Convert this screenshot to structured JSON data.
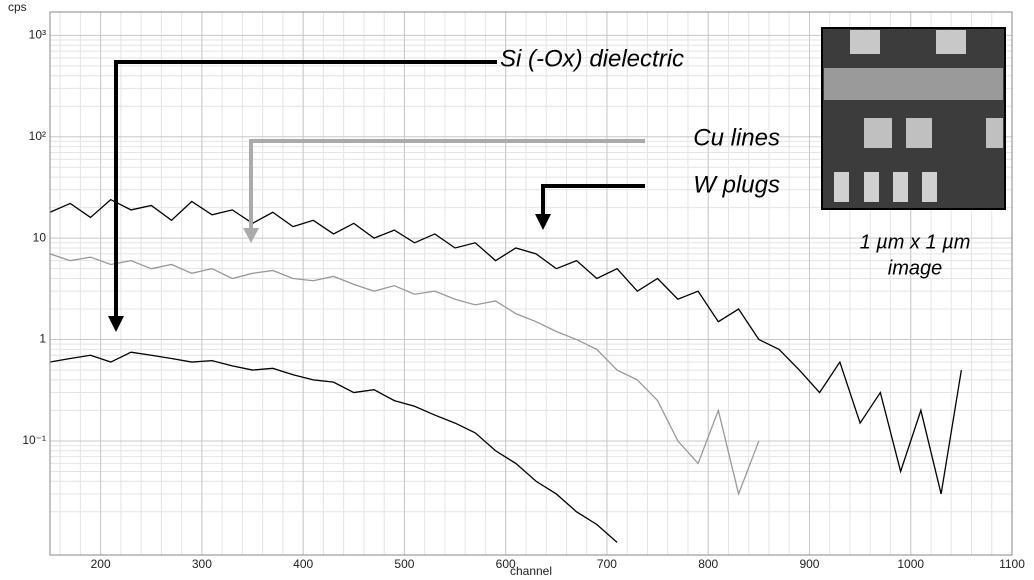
{
  "chart_data": {
    "type": "line",
    "y_label": "cps",
    "x_label": "channel",
    "xlim": [
      150,
      1100
    ],
    "xticks": [
      200,
      300,
      400,
      500,
      600,
      700,
      800,
      900,
      1000,
      1100
    ],
    "ylim": [
      0.0075,
      1700
    ],
    "log_y": true,
    "grid": true,
    "yticks": [
      {
        "value": 0.1,
        "label": "10⁻¹"
      },
      1,
      10,
      {
        "value": 100,
        "label": "10²"
      },
      {
        "value": 1000,
        "label": "10³"
      }
    ],
    "x": [
      150,
      170,
      190,
      210,
      230,
      250,
      270,
      290,
      310,
      330,
      350,
      370,
      390,
      410,
      430,
      450,
      470,
      490,
      510,
      530,
      550,
      570,
      590,
      610,
      630,
      650,
      670,
      690,
      710,
      730,
      750,
      770,
      790,
      810,
      830,
      850,
      870,
      890,
      910,
      930,
      950,
      970,
      990,
      1010,
      1030,
      1050
    ],
    "series": [
      {
        "name": "W plugs",
        "color": "#000000",
        "values": [
          18,
          22,
          16,
          24,
          19,
          21,
          15,
          23,
          17,
          19,
          14,
          18,
          13,
          15,
          11,
          14,
          10,
          12,
          9,
          11,
          8,
          9,
          6,
          8,
          7,
          5,
          6,
          4,
          5,
          3,
          4,
          2.5,
          3,
          1.5,
          2,
          1,
          0.8,
          0.5,
          0.3,
          0.6,
          0.15,
          0.3,
          0.05,
          0.2,
          0.03,
          0.5
        ]
      },
      {
        "name": "Cu lines",
        "color": "#999999",
        "values": [
          7,
          6,
          6.5,
          5.5,
          6,
          5,
          5.5,
          4.5,
          5,
          4,
          4.5,
          4.8,
          4,
          3.8,
          4.2,
          3.5,
          3,
          3.4,
          2.8,
          3,
          2.5,
          2.2,
          2.4,
          1.8,
          1.5,
          1.2,
          1,
          0.8,
          0.5,
          0.4,
          0.25,
          0.1,
          0.06,
          0.2,
          0.03,
          0.1,
          null,
          null,
          null,
          null,
          null,
          null,
          null,
          null,
          null,
          null
        ]
      },
      {
        "name": "Si (-Ox) dielectric",
        "color": "#000000",
        "values": [
          0.6,
          0.65,
          0.7,
          0.6,
          0.75,
          0.7,
          0.65,
          0.6,
          0.62,
          0.55,
          0.5,
          0.52,
          0.45,
          0.4,
          0.38,
          0.3,
          0.32,
          0.25,
          0.22,
          0.18,
          0.15,
          0.12,
          0.08,
          0.06,
          0.04,
          0.03,
          0.02,
          0.015,
          0.01,
          null,
          null,
          null,
          null,
          null,
          null,
          null,
          null,
          null,
          null,
          null,
          null,
          null,
          null,
          null,
          null,
          null
        ]
      }
    ],
    "caption": [
      "1 µm x 1 µm",
      "image"
    ]
  }
}
